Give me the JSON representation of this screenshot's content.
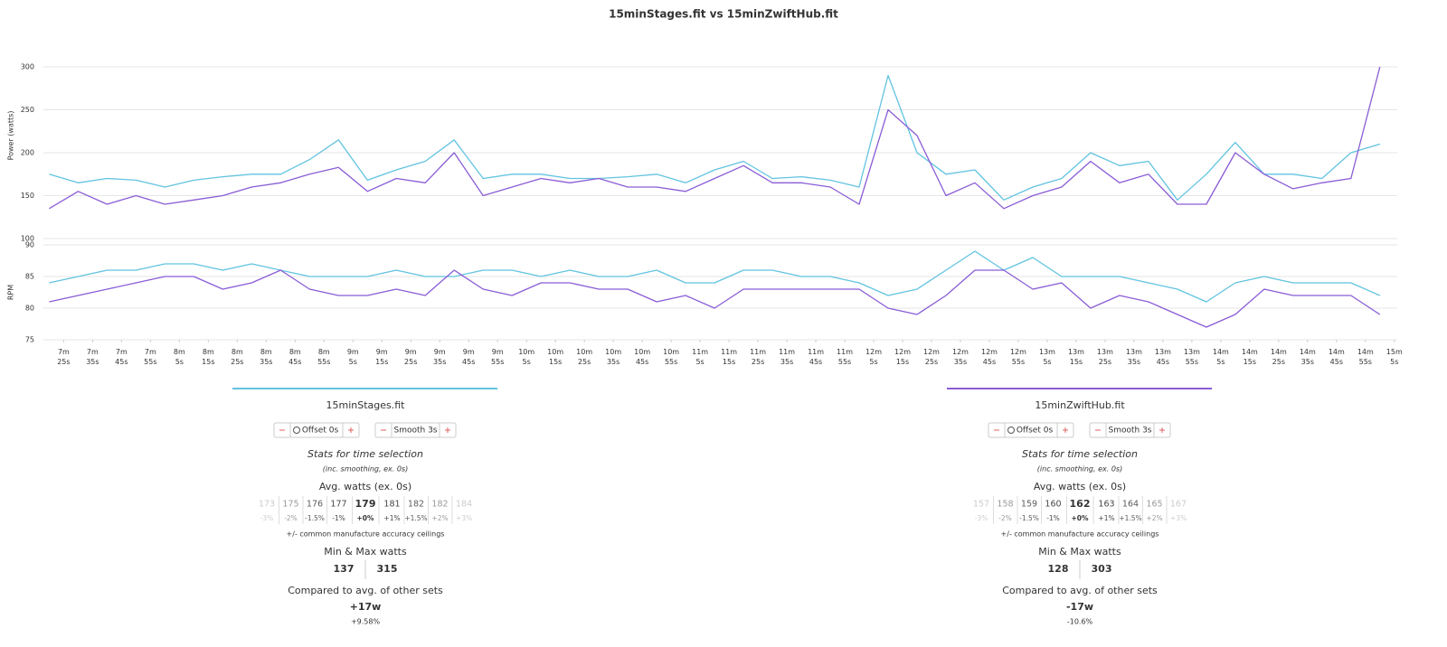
{
  "chart_data": [
    {
      "type": "line",
      "title": "15minStages.fit vs 15minZwiftHub.fit",
      "y_label": "Power (watts)",
      "x": [
        440,
        450,
        460,
        470,
        480,
        490,
        500,
        510,
        520,
        530,
        540,
        550,
        560,
        570,
        580,
        590,
        600,
        610,
        620,
        630,
        640,
        650,
        660,
        670,
        680,
        690,
        700,
        710,
        720,
        730,
        740,
        750,
        760,
        770,
        780,
        790,
        800,
        810,
        820,
        830,
        840,
        850,
        860,
        870,
        880,
        890,
        900
      ],
      "xlim": [
        438,
        906
      ],
      "ylim": [
        100,
        340
      ],
      "yticks": [
        100,
        150,
        200,
        250,
        300
      ],
      "grid": true,
      "series": [
        {
          "name": "15minStages.fit",
          "color": "#62c3e0",
          "values": [
            175,
            165,
            170,
            168,
            160,
            168,
            172,
            175,
            175,
            192,
            215,
            168,
            180,
            190,
            215,
            170,
            175,
            175,
            170,
            170,
            172,
            175,
            165,
            180,
            190,
            170,
            172,
            168,
            160,
            290,
            200,
            175,
            180,
            145,
            160,
            170,
            200,
            185,
            190,
            145,
            175,
            212,
            175,
            175,
            170,
            200,
            210
          ]
        },
        {
          "name": "15minZwiftHub.fit",
          "color": "#8a5cd6",
          "values": [
            135,
            155,
            140,
            150,
            140,
            145,
            150,
            160,
            165,
            175,
            183,
            155,
            170,
            165,
            200,
            150,
            160,
            170,
            165,
            170,
            160,
            160,
            155,
            170,
            185,
            165,
            165,
            160,
            140,
            250,
            220,
            150,
            165,
            135,
            150,
            160,
            190,
            165,
            175,
            140,
            140,
            200,
            175,
            158,
            165,
            170,
            300
          ]
        }
      ]
    },
    {
      "type": "line",
      "y_label": "RPM",
      "x": [
        440,
        450,
        460,
        470,
        480,
        490,
        500,
        510,
        520,
        530,
        540,
        550,
        560,
        570,
        580,
        590,
        600,
        610,
        620,
        630,
        640,
        650,
        660,
        670,
        680,
        690,
        700,
        710,
        720,
        730,
        740,
        750,
        760,
        770,
        780,
        790,
        800,
        810,
        820,
        830,
        840,
        850,
        860,
        870,
        880,
        890,
        900
      ],
      "xlim": [
        438,
        906
      ],
      "ylim": [
        75,
        90
      ],
      "yticks": [
        75,
        80,
        85,
        90
      ],
      "grid": true,
      "xticks": [
        {
          "value": 445,
          "label": "7m 25s"
        },
        {
          "value": 455,
          "label": "7m 35s"
        },
        {
          "value": 465,
          "label": "7m 45s"
        },
        {
          "value": 475,
          "label": "7m 55s"
        },
        {
          "value": 485,
          "label": "8m 5s"
        },
        {
          "value": 495,
          "label": "8m 15s"
        },
        {
          "value": 505,
          "label": "8m 25s"
        },
        {
          "value": 515,
          "label": "8m 35s"
        },
        {
          "value": 525,
          "label": "8m 45s"
        },
        {
          "value": 535,
          "label": "8m 55s"
        },
        {
          "value": 545,
          "label": "9m 5s"
        },
        {
          "value": 555,
          "label": "9m 15s"
        },
        {
          "value": 565,
          "label": "9m 25s"
        },
        {
          "value": 575,
          "label": "9m 35s"
        },
        {
          "value": 585,
          "label": "9m 45s"
        },
        {
          "value": 595,
          "label": "9m 55s"
        },
        {
          "value": 605,
          "label": "10m 5s"
        },
        {
          "value": 615,
          "label": "10m 15s"
        },
        {
          "value": 625,
          "label": "10m 25s"
        },
        {
          "value": 635,
          "label": "10m 35s"
        },
        {
          "value": 645,
          "label": "10m 45s"
        },
        {
          "value": 655,
          "label": "10m 55s"
        },
        {
          "value": 665,
          "label": "11m 5s"
        },
        {
          "value": 675,
          "label": "11m 15s"
        },
        {
          "value": 685,
          "label": "11m 25s"
        },
        {
          "value": 695,
          "label": "11m 35s"
        },
        {
          "value": 705,
          "label": "11m 45s"
        },
        {
          "value": 715,
          "label": "11m 55s"
        },
        {
          "value": 725,
          "label": "12m 5s"
        },
        {
          "value": 735,
          "label": "12m 15s"
        },
        {
          "value": 745,
          "label": "12m 25s"
        },
        {
          "value": 755,
          "label": "12m 35s"
        },
        {
          "value": 765,
          "label": "12m 45s"
        },
        {
          "value": 775,
          "label": "12m 55s"
        },
        {
          "value": 785,
          "label": "13m 5s"
        },
        {
          "value": 795,
          "label": "13m 15s"
        },
        {
          "value": 805,
          "label": "13m 25s"
        },
        {
          "value": 815,
          "label": "13m 35s"
        },
        {
          "value": 825,
          "label": "13m 45s"
        },
        {
          "value": 835,
          "label": "13m 55s"
        },
        {
          "value": 845,
          "label": "14m 5s"
        },
        {
          "value": 855,
          "label": "14m 15s"
        },
        {
          "value": 865,
          "label": "14m 25s"
        },
        {
          "value": 875,
          "label": "14m 35s"
        },
        {
          "value": 885,
          "label": "14m 45s"
        },
        {
          "value": 895,
          "label": "14m 55s"
        },
        {
          "value": 905,
          "label": "15m 5s"
        }
      ],
      "series": [
        {
          "name": "15minStages.fit",
          "color": "#62c3e0",
          "values": [
            84,
            85,
            86,
            86,
            87,
            87,
            86,
            87,
            86,
            85,
            85,
            85,
            86,
            85,
            85,
            86,
            86,
            85,
            86,
            85,
            85,
            86,
            84,
            84,
            86,
            86,
            85,
            85,
            84,
            82,
            83,
            86,
            89,
            86,
            88,
            85,
            85,
            85,
            84,
            83,
            81,
            84,
            85,
            84,
            84,
            84,
            82
          ]
        },
        {
          "name": "15minZwiftHub.fit",
          "color": "#8a5cd6",
          "values": [
            81,
            82,
            83,
            84,
            85,
            85,
            83,
            84,
            86,
            83,
            82,
            82,
            83,
            82,
            86,
            83,
            82,
            84,
            84,
            83,
            83,
            81,
            82,
            80,
            83,
            83,
            83,
            83,
            83,
            80,
            79,
            82,
            86,
            86,
            83,
            84,
            80,
            82,
            81,
            79,
            77,
            79,
            83,
            82,
            82,
            82,
            79
          ]
        }
      ]
    }
  ],
  "panels": [
    {
      "name": "15minStages.fit",
      "color": "#62c3e0",
      "offset": "Offset 0s",
      "smooth": "Smooth 3s",
      "stats_title": "Stats for time selection",
      "stats_note": "(inc. smoothing, ex. 0s)",
      "avg_title": "Avg. watts (ex. 0s)",
      "avg_cells": [
        {
          "value": "173",
          "pct": "-3%"
        },
        {
          "value": "175",
          "pct": "-2%"
        },
        {
          "value": "176",
          "pct": "-1.5%"
        },
        {
          "value": "177",
          "pct": "-1%"
        },
        {
          "value": "179",
          "pct": "+0%"
        },
        {
          "value": "181",
          "pct": "+1%"
        },
        {
          "value": "182",
          "pct": "+1.5%"
        },
        {
          "value": "182",
          "pct": "+2%"
        },
        {
          "value": "184",
          "pct": "+3%"
        }
      ],
      "accuracy_note": "+/- common manufacture accuracy ceilings",
      "minmax_title": "Min & Max watts",
      "min": "137",
      "max": "315",
      "compare_title": "Compared to avg. of other sets",
      "compare_value": "+17w",
      "compare_pct": "+9.58%"
    },
    {
      "name": "15minZwiftHub.fit",
      "color": "#8a5cd6",
      "offset": "Offset 0s",
      "smooth": "Smooth 3s",
      "stats_title": "Stats for time selection",
      "stats_note": "(inc. smoothing, ex. 0s)",
      "avg_title": "Avg. watts (ex. 0s)",
      "avg_cells": [
        {
          "value": "157",
          "pct": "-3%"
        },
        {
          "value": "158",
          "pct": "-2%"
        },
        {
          "value": "159",
          "pct": "-1.5%"
        },
        {
          "value": "160",
          "pct": "-1%"
        },
        {
          "value": "162",
          "pct": "+0%"
        },
        {
          "value": "163",
          "pct": "+1%"
        },
        {
          "value": "164",
          "pct": "+1.5%"
        },
        {
          "value": "165",
          "pct": "+2%"
        },
        {
          "value": "167",
          "pct": "+3%"
        }
      ],
      "accuracy_note": "+/- common manufacture accuracy ceilings",
      "minmax_title": "Min & Max watts",
      "min": "128",
      "max": "303",
      "compare_title": "Compared to avg. of other sets",
      "compare_value": "-17w",
      "compare_pct": "-10.6%"
    }
  ]
}
